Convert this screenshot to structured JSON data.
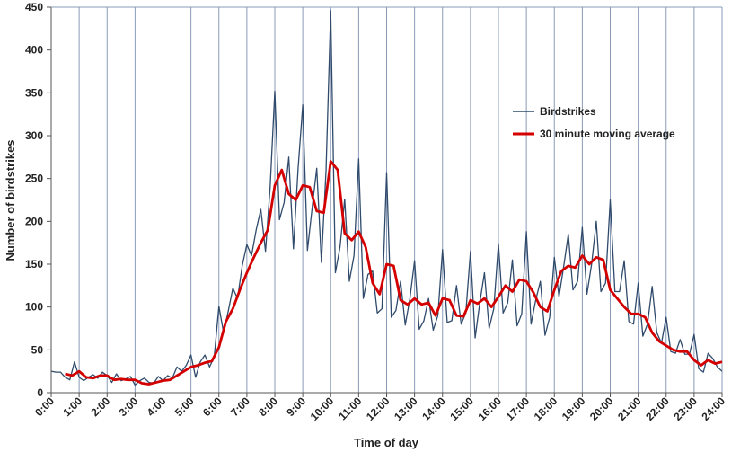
{
  "chart_data": {
    "type": "line",
    "xlabel": "Time of day",
    "ylabel": "Number of birdstrikes",
    "xlim": [
      0,
      24
    ],
    "ylim": [
      0,
      450
    ],
    "y_ticks": [
      0,
      50,
      100,
      150,
      200,
      250,
      300,
      350,
      400,
      450
    ],
    "x_tick_labels": [
      "0:00",
      "1:00",
      "2:00",
      "3:00",
      "4:00",
      "5:00",
      "6:00",
      "7:00",
      "8:00",
      "9:00",
      "10:00",
      "11:00",
      "12:00",
      "13:00",
      "14:00",
      "15:00",
      "16:00",
      "17:00",
      "18:00",
      "19:00",
      "20:00",
      "21:00",
      "22:00",
      "23:00",
      "24:00"
    ],
    "grid": "vertical",
    "legend_position": "right",
    "colors": {
      "Birdstrikes": "#2f4a6b",
      "30 minute moving average": "#d40000"
    },
    "series": [
      {
        "name": "Birdstrikes",
        "x": [
          0,
          0.1667,
          0.3333,
          0.5,
          0.6667,
          0.8333,
          1,
          1.1667,
          1.3333,
          1.5,
          1.6667,
          1.8333,
          2,
          2.1667,
          2.3333,
          2.5,
          2.6667,
          2.8333,
          3,
          3.1667,
          3.3333,
          3.5,
          3.6667,
          3.8333,
          4,
          4.1667,
          4.3333,
          4.5,
          4.6667,
          4.8333,
          5,
          5.1667,
          5.3333,
          5.5,
          5.6667,
          5.8333,
          6,
          6.1667,
          6.3333,
          6.5,
          6.6667,
          6.8333,
          7,
          7.1667,
          7.3333,
          7.5,
          7.6667,
          7.8333,
          8,
          8.1667,
          8.3333,
          8.5,
          8.6667,
          8.8333,
          9,
          9.1667,
          9.3333,
          9.5,
          9.6667,
          9.8333,
          10,
          10.1667,
          10.3333,
          10.5,
          10.6667,
          10.8333,
          11,
          11.1667,
          11.3333,
          11.5,
          11.6667,
          11.8333,
          12,
          12.1667,
          12.3333,
          12.5,
          12.6667,
          12.8333,
          13,
          13.1667,
          13.3333,
          13.5,
          13.6667,
          13.8333,
          14,
          14.1667,
          14.3333,
          14.5,
          14.6667,
          14.8333,
          15,
          15.1667,
          15.3333,
          15.5,
          15.6667,
          15.8333,
          16,
          16.1667,
          16.3333,
          16.5,
          16.6667,
          16.8333,
          17,
          17.1667,
          17.3333,
          17.5,
          17.6667,
          17.8333,
          18,
          18.1667,
          18.3333,
          18.5,
          18.6667,
          18.8333,
          19,
          19.1667,
          19.3333,
          19.5,
          19.6667,
          19.8333,
          20,
          20.1667,
          20.3333,
          20.5,
          20.6667,
          20.8333,
          21,
          21.1667,
          21.3333,
          21.5,
          21.6667,
          21.8333,
          22,
          22.1667,
          22.3333,
          22.5,
          22.6667,
          22.8333,
          23,
          23.1667,
          23.3333,
          23.5,
          23.6667,
          23.8333,
          24
        ],
        "values": [
          25,
          24,
          24,
          18,
          15,
          36,
          18,
          14,
          18,
          21,
          17,
          24,
          20,
          12,
          22,
          14,
          16,
          19,
          9,
          14,
          17,
          12,
          11,
          19,
          14,
          20,
          17,
          30,
          25,
          32,
          44,
          18,
          36,
          44,
          30,
          42,
          101,
          70,
          95,
          122,
          110,
          148,
          173,
          160,
          190,
          214,
          165,
          240,
          352,
          202,
          222,
          275,
          168,
          262,
          336,
          166,
          215,
          262,
          152,
          260,
          446,
          140,
          170,
          226,
          130,
          160,
          273,
          110,
          138,
          142,
          93,
          98,
          257,
          88,
          96,
          130,
          79,
          110,
          154,
          74,
          84,
          110,
          73,
          90,
          167,
          82,
          84,
          125,
          80,
          93,
          165,
          64,
          105,
          140,
          75,
          98,
          174,
          93,
          105,
          155,
          78,
          92,
          188,
          80,
          108,
          130,
          67,
          88,
          158,
          112,
          147,
          185,
          120,
          130,
          193,
          115,
          150,
          200,
          118,
          128,
          225,
          118,
          118,
          154,
          83,
          80,
          128,
          66,
          80,
          124,
          70,
          58,
          88,
          48,
          46,
          62,
          45,
          45,
          68,
          28,
          24,
          46,
          40,
          30,
          25
        ]
      },
      {
        "name": "30 minute moving average",
        "x": [
          0.5,
          0.75,
          1,
          1.25,
          1.5,
          1.75,
          2,
          2.25,
          2.5,
          2.75,
          3,
          3.25,
          3.5,
          3.75,
          4,
          4.25,
          4.5,
          4.75,
          5,
          5.25,
          5.5,
          5.75,
          6,
          6.25,
          6.5,
          6.75,
          7,
          7.25,
          7.5,
          7.75,
          8,
          8.25,
          8.5,
          8.75,
          9,
          9.25,
          9.5,
          9.75,
          10,
          10.25,
          10.5,
          10.75,
          11,
          11.25,
          11.5,
          11.75,
          12,
          12.25,
          12.5,
          12.75,
          13,
          13.25,
          13.5,
          13.75,
          14,
          14.25,
          14.5,
          14.75,
          15,
          15.25,
          15.5,
          15.75,
          16,
          16.25,
          16.5,
          16.75,
          17,
          17.25,
          17.5,
          17.75,
          18,
          18.25,
          18.5,
          18.75,
          19,
          19.25,
          19.5,
          19.75,
          20,
          20.25,
          20.5,
          20.75,
          21,
          21.25,
          21.5,
          21.75,
          22,
          22.25,
          22.5,
          22.75,
          23,
          23.25,
          23.5,
          23.75,
          24
        ],
        "values": [
          22,
          20,
          25,
          18,
          17,
          20,
          20,
          15,
          16,
          15,
          15,
          11,
          10,
          12,
          14,
          15,
          20,
          25,
          30,
          32,
          35,
          37,
          53,
          83,
          98,
          120,
          140,
          158,
          175,
          190,
          242,
          260,
          232,
          225,
          242,
          240,
          212,
          210,
          270,
          260,
          186,
          178,
          188,
          170,
          128,
          115,
          150,
          148,
          108,
          103,
          110,
          103,
          105,
          90,
          110,
          108,
          90,
          89,
          108,
          104,
          110,
          100,
          112,
          125,
          118,
          132,
          130,
          117,
          100,
          95,
          120,
          142,
          148,
          146,
          160,
          150,
          158,
          155,
          120,
          110,
          100,
          92,
          92,
          88,
          70,
          60,
          55,
          50,
          48,
          48,
          38,
          32,
          38,
          34,
          36
        ]
      }
    ]
  }
}
